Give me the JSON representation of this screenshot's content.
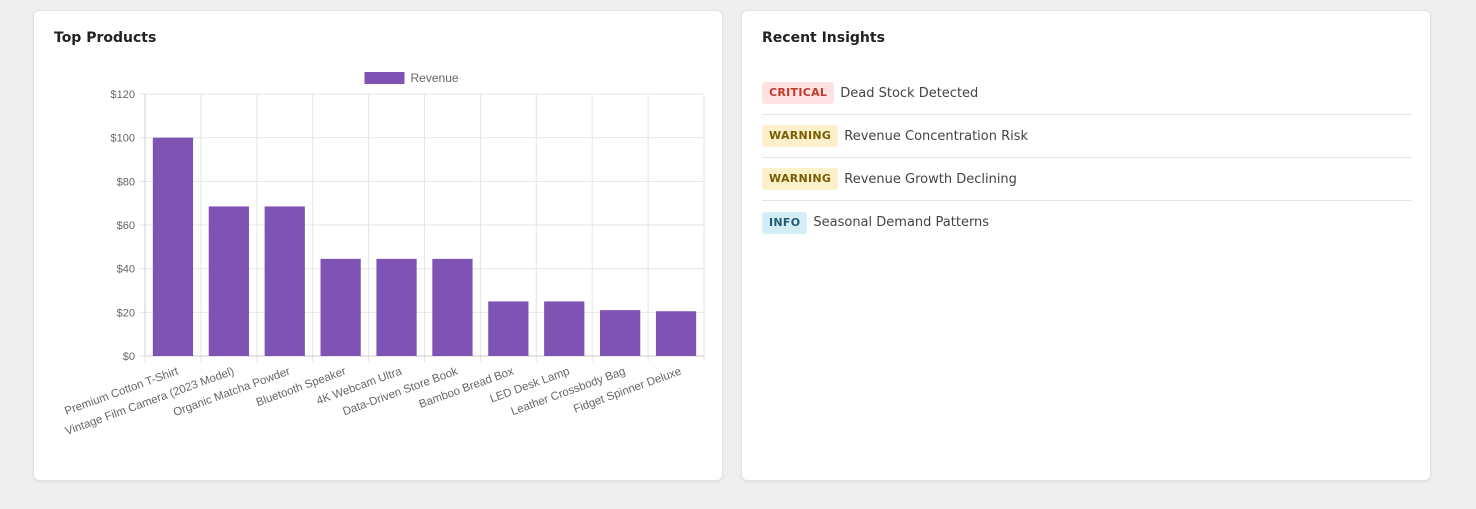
{
  "top_products": {
    "title": "Top Products"
  },
  "chart_data": {
    "type": "bar",
    "categories": [
      "Premium Cotton T-Shirt",
      "Vintage Film Camera (2023 Model)",
      "Organic Matcha Powder",
      "Bluetooth Speaker",
      "4K Webcam Ultra",
      "Data-Driven Store Book",
      "Bamboo Bread Box",
      "LED Desk Lamp",
      "Leather Crossbody Bag",
      "Fidget Spinner Deluxe"
    ],
    "series": [
      {
        "name": "Revenue",
        "values": [
          100,
          68.5,
          68.5,
          44.5,
          44.5,
          44.5,
          25,
          25,
          21,
          20.5
        ]
      }
    ],
    "ylim": [
      0,
      120
    ],
    "yticks": [
      0,
      20,
      40,
      60,
      80,
      100,
      120
    ],
    "ytick_labels": [
      "$0",
      "$20",
      "$40",
      "$60",
      "$80",
      "$100",
      "$120"
    ],
    "grid": true,
    "legend": "top-center",
    "bar_color": "#7f53b3"
  },
  "insights": {
    "title": "Recent Insights",
    "items": [
      {
        "severity": "CRITICAL",
        "text": "Dead Stock Detected",
        "badge_bg": "#fde2e4",
        "badge_fg": "#c0392b"
      },
      {
        "severity": "WARNING",
        "text": "Revenue Concentration Risk",
        "badge_bg": "#fcf1c9",
        "badge_fg": "#7a5b05"
      },
      {
        "severity": "WARNING",
        "text": "Revenue Growth Declining",
        "badge_bg": "#fcf1c9",
        "badge_fg": "#7a5b05"
      },
      {
        "severity": "INFO",
        "text": "Seasonal Demand Patterns",
        "badge_bg": "#d4eef8",
        "badge_fg": "#1f5b75"
      }
    ]
  }
}
